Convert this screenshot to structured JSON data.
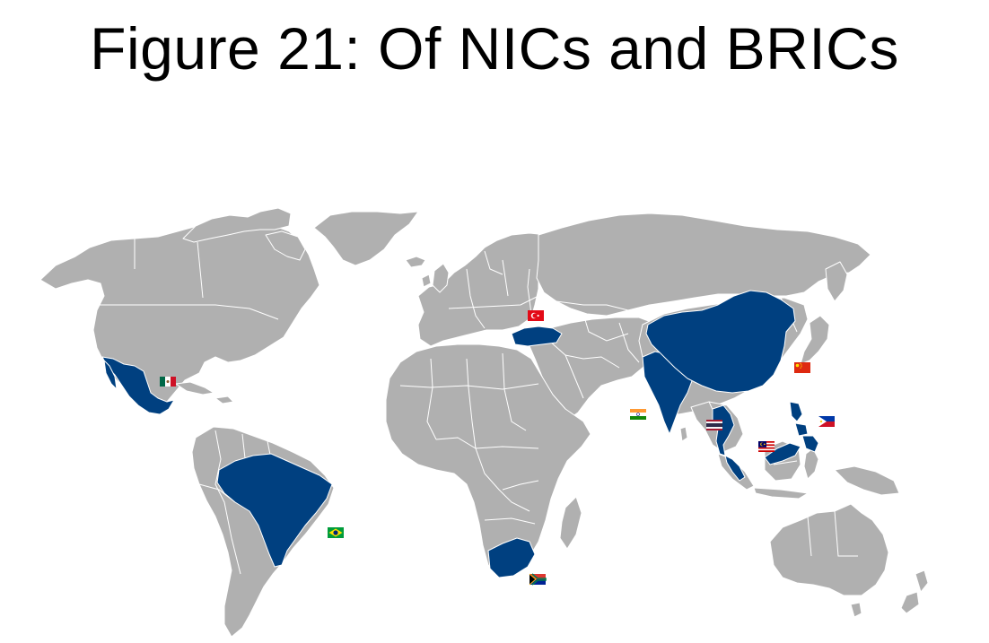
{
  "title": "Figure 21: Of NICs and BRICs",
  "colors": {
    "land": "#b0b0b0",
    "highlight": "#004080",
    "border": "#ffffff",
    "background": "#ffffff"
  },
  "highlighted_countries": [
    {
      "name": "Mexico",
      "flag": "mexico-flag-icon"
    },
    {
      "name": "Brazil",
      "flag": "brazil-flag-icon"
    },
    {
      "name": "South Africa",
      "flag": "south-africa-flag-icon"
    },
    {
      "name": "Turkey",
      "flag": "turkey-flag-icon"
    },
    {
      "name": "India",
      "flag": "india-flag-icon"
    },
    {
      "name": "China",
      "flag": "china-flag-icon"
    },
    {
      "name": "Thailand",
      "flag": "thailand-flag-icon"
    },
    {
      "name": "Malaysia",
      "flag": "malaysia-flag-icon"
    },
    {
      "name": "Philippines",
      "flag": "philippines-flag-icon"
    }
  ]
}
